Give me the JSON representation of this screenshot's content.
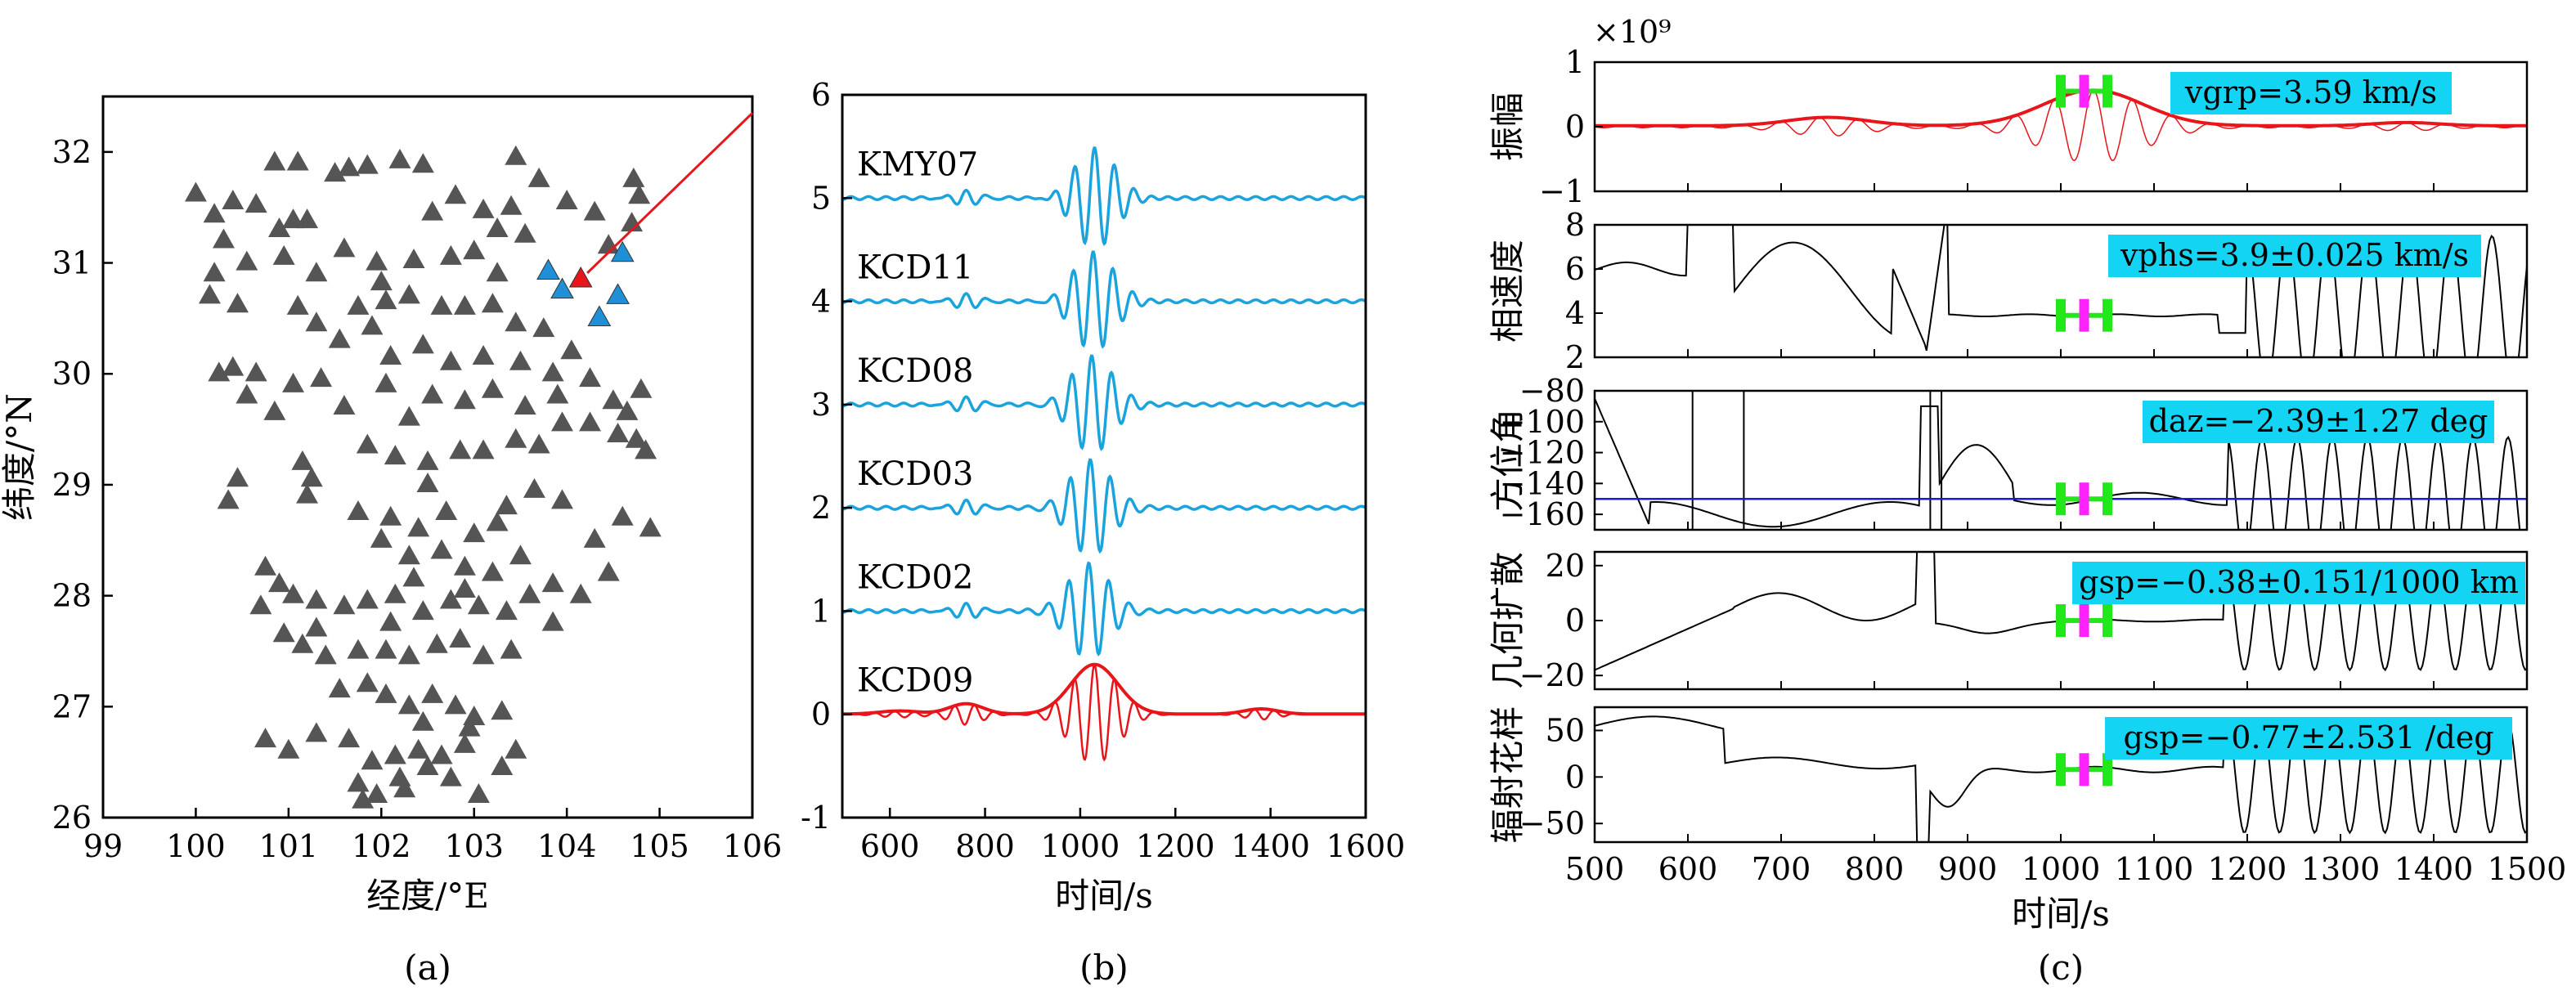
{
  "colors": {
    "station_gray": "#555555",
    "station_blue": "#1f8fd6",
    "event_red": "#e8151b",
    "trace_blue": "#1aa3dc",
    "trace_red": "#e8151b",
    "badge_bg": "#14d4f4",
    "win_green": "#22e81b",
    "win_magenta": "#ff22ff",
    "ref_line_blue": "#1a1ad6",
    "black": "#000000"
  },
  "chart_data": [
    {
      "id": "a",
      "type": "scatter",
      "panel_label": "(a)",
      "xlabel": "经度/°E",
      "ylabel": "纬度/°N",
      "xlim": [
        99,
        106
      ],
      "ylim": [
        26,
        32.5
      ],
      "xticks": [
        "99",
        "100",
        "101",
        "102",
        "103",
        "104",
        "105",
        "106"
      ],
      "yticks": [
        "26",
        "27",
        "28",
        "29",
        "30",
        "31",
        "32"
      ],
      "series": [
        {
          "marker": "triangle",
          "color": "gray",
          "points": [
            [
              100.0,
              31.62
            ],
            [
              100.2,
              31.43
            ],
            [
              100.4,
              31.55
            ],
            [
              100.65,
              31.52
            ],
            [
              100.85,
              31.9
            ],
            [
              101.1,
              31.9
            ],
            [
              101.5,
              31.8
            ],
            [
              101.65,
              31.85
            ],
            [
              101.85,
              31.87
            ],
            [
              102.2,
              31.92
            ],
            [
              102.45,
              31.88
            ],
            [
              103.45,
              31.95
            ],
            [
              103.7,
              31.75
            ],
            [
              102.8,
              31.6
            ],
            [
              103.1,
              31.47
            ],
            [
              103.4,
              31.5
            ],
            [
              103.25,
              31.3
            ],
            [
              103.55,
              31.25
            ],
            [
              104.0,
              31.55
            ],
            [
              104.3,
              31.45
            ],
            [
              104.72,
              31.75
            ],
            [
              104.78,
              31.6
            ],
            [
              104.7,
              31.35
            ],
            [
              104.45,
              31.15
            ],
            [
              100.3,
              31.2
            ],
            [
              100.55,
              31.0
            ],
            [
              100.9,
              31.3
            ],
            [
              101.2,
              31.38
            ],
            [
              101.6,
              31.12
            ],
            [
              101.95,
              31.0
            ],
            [
              102.35,
              31.02
            ],
            [
              102.75,
              31.05
            ],
            [
              103.0,
              31.1
            ],
            [
              103.25,
              30.9
            ],
            [
              100.2,
              30.9
            ],
            [
              100.15,
              30.7
            ],
            [
              100.45,
              30.62
            ],
            [
              100.95,
              31.05
            ],
            [
              101.3,
              30.9
            ],
            [
              101.75,
              30.6
            ],
            [
              102.0,
              30.82
            ],
            [
              102.3,
              30.7
            ],
            [
              102.65,
              30.6
            ],
            [
              102.9,
              30.6
            ],
            [
              103.2,
              30.62
            ],
            [
              103.45,
              30.45
            ],
            [
              100.25,
              30.0
            ],
            [
              100.4,
              30.05
            ],
            [
              101.1,
              30.6
            ],
            [
              101.3,
              30.45
            ],
            [
              101.55,
              30.3
            ],
            [
              101.9,
              30.42
            ],
            [
              102.1,
              30.15
            ],
            [
              102.45,
              30.25
            ],
            [
              102.75,
              30.1
            ],
            [
              103.1,
              30.15
            ],
            [
              103.5,
              30.1
            ],
            [
              103.75,
              30.4
            ],
            [
              100.55,
              29.8
            ],
            [
              100.85,
              29.65
            ],
            [
              101.05,
              29.9
            ],
            [
              101.35,
              29.95
            ],
            [
              101.6,
              29.7
            ],
            [
              102.05,
              29.9
            ],
            [
              102.3,
              29.6
            ],
            [
              102.55,
              29.8
            ],
            [
              102.9,
              29.75
            ],
            [
              103.2,
              29.85
            ],
            [
              103.55,
              29.7
            ],
            [
              103.85,
              30.0
            ],
            [
              104.05,
              30.2
            ],
            [
              104.25,
              29.95
            ],
            [
              104.5,
              29.75
            ],
            [
              104.8,
              29.85
            ],
            [
              104.65,
              29.65
            ],
            [
              100.45,
              29.05
            ],
            [
              100.35,
              28.85
            ],
            [
              101.15,
              29.2
            ],
            [
              101.25,
              29.05
            ],
            [
              101.85,
              29.35
            ],
            [
              102.15,
              29.25
            ],
            [
              102.5,
              29.0
            ],
            [
              102.85,
              29.3
            ],
            [
              103.1,
              29.3
            ],
            [
              103.45,
              29.4
            ],
            [
              103.7,
              29.35
            ],
            [
              103.95,
              29.55
            ],
            [
              104.25,
              29.55
            ],
            [
              104.55,
              29.45
            ],
            [
              104.75,
              29.4
            ],
            [
              104.85,
              29.3
            ],
            [
              103.9,
              29.8
            ],
            [
              101.2,
              28.9
            ],
            [
              101.75,
              28.75
            ],
            [
              102.1,
              28.7
            ],
            [
              102.4,
              28.6
            ],
            [
              102.7,
              28.75
            ],
            [
              103.0,
              28.55
            ],
            [
              103.35,
              28.8
            ],
            [
              103.65,
              28.95
            ],
            [
              103.95,
              28.85
            ],
            [
              104.3,
              28.5
            ],
            [
              104.6,
              28.7
            ],
            [
              104.9,
              28.6
            ],
            [
              102.0,
              28.5
            ],
            [
              102.3,
              28.35
            ],
            [
              102.65,
              28.4
            ],
            [
              102.9,
              28.25
            ],
            [
              103.2,
              28.2
            ],
            [
              103.5,
              28.35
            ],
            [
              103.85,
              28.1
            ],
            [
              104.15,
              28.0
            ],
            [
              104.45,
              28.2
            ],
            [
              100.75,
              28.25
            ],
            [
              100.9,
              28.1
            ],
            [
              101.05,
              28.0
            ],
            [
              101.3,
              27.95
            ],
            [
              101.6,
              27.9
            ],
            [
              101.85,
              27.95
            ],
            [
              102.15,
              28.0
            ],
            [
              102.45,
              27.85
            ],
            [
              102.75,
              27.95
            ],
            [
              103.05,
              27.9
            ],
            [
              103.35,
              27.85
            ],
            [
              103.6,
              28.0
            ],
            [
              103.85,
              27.75
            ],
            [
              100.7,
              27.9
            ],
            [
              100.95,
              27.65
            ],
            [
              101.15,
              27.55
            ],
            [
              101.4,
              27.45
            ],
            [
              101.75,
              27.5
            ],
            [
              102.05,
              27.5
            ],
            [
              102.3,
              27.45
            ],
            [
              102.6,
              27.55
            ],
            [
              102.85,
              27.6
            ],
            [
              103.1,
              27.45
            ],
            [
              103.4,
              27.5
            ],
            [
              101.85,
              27.2
            ],
            [
              102.05,
              27.1
            ],
            [
              102.3,
              27.0
            ],
            [
              102.55,
              27.1
            ],
            [
              102.8,
              27.0
            ],
            [
              103.0,
              26.9
            ],
            [
              103.3,
              26.95
            ],
            [
              100.75,
              26.7
            ],
            [
              101.0,
              26.6
            ],
            [
              101.3,
              26.75
            ],
            [
              101.65,
              26.7
            ],
            [
              101.9,
              26.5
            ],
            [
              102.15,
              26.55
            ],
            [
              102.4,
              26.6
            ],
            [
              102.65,
              26.55
            ],
            [
              102.9,
              26.65
            ],
            [
              103.45,
              26.6
            ],
            [
              101.75,
              26.3
            ],
            [
              101.95,
              26.2
            ],
            [
              102.2,
              26.35
            ],
            [
              102.5,
              26.45
            ],
            [
              102.75,
              26.35
            ],
            [
              103.05,
              26.2
            ],
            [
              103.3,
              26.45
            ],
            [
              101.8,
              26.15
            ],
            [
              102.25,
              26.25
            ],
            [
              102.95,
              26.8
            ],
            [
              102.45,
              26.85
            ],
            [
              102.1,
              27.75
            ],
            [
              102.35,
              28.15
            ],
            [
              101.55,
              27.15
            ],
            [
              101.3,
              27.7
            ],
            [
              102.9,
              28.05
            ],
            [
              103.25,
              28.65
            ],
            [
              102.5,
              29.2
            ],
            [
              102.05,
              30.65
            ],
            [
              101.05,
              31.38
            ],
            [
              100.65,
              30.0
            ],
            [
              102.55,
              31.45
            ]
          ]
        },
        {
          "marker": "triangle",
          "color": "blue",
          "points": [
            [
              103.8,
              30.92
            ],
            [
              103.95,
              30.75
            ],
            [
              104.35,
              30.5
            ],
            [
              104.6,
              31.08
            ],
            [
              104.55,
              30.7
            ]
          ]
        },
        {
          "marker": "triangle",
          "color": "red",
          "points": [
            [
              104.15,
              30.85
            ]
          ]
        }
      ],
      "annotation": {
        "type": "arrow",
        "from": [
          106,
          32.35
        ],
        "to": [
          104.15,
          30.85
        ]
      }
    },
    {
      "id": "b",
      "type": "line",
      "panel_label": "(b)",
      "xlabel": "时间/s",
      "xlim": [
        500,
        1600
      ],
      "ylim": [
        -1,
        6
      ],
      "xticks": [
        "600",
        "800",
        "1000",
        "1200",
        "1400",
        "1600"
      ],
      "yticks": [
        "-1",
        "0",
        "1",
        "2",
        "3",
        "4",
        "5",
        "6"
      ],
      "series": [
        {
          "name": "KMY07",
          "offset": 5,
          "color": "blue"
        },
        {
          "name": "KCD11",
          "offset": 4,
          "color": "blue"
        },
        {
          "name": "KCD08",
          "offset": 3,
          "color": "blue"
        },
        {
          "name": "KCD03",
          "offset": 2,
          "color": "blue"
        },
        {
          "name": "KCD02",
          "offset": 1,
          "color": "blue"
        },
        {
          "name": "KCD09",
          "offset": 0,
          "color": "red",
          "envelope": true
        }
      ]
    },
    {
      "id": "c",
      "type": "line",
      "panel_label": "(c)",
      "xlabel": "时间/s",
      "xlim": [
        500,
        1500
      ],
      "xticks": [
        "500",
        "600",
        "700",
        "800",
        "900",
        "1000",
        "1100",
        "1200",
        "1300",
        "1400",
        "1500"
      ],
      "exponent_label": "×10⁹",
      "window": {
        "left": 1000,
        "center": 1025,
        "right": 1050
      },
      "subplots": [
        {
          "ylabel": "振幅",
          "ylim": [
            -1,
            1
          ],
          "yticks": [
            "−1",
            "0",
            "1"
          ],
          "badge": "vgrp=3.59 km/s"
        },
        {
          "ylabel": "相速度",
          "ylim": [
            2,
            8
          ],
          "yticks": [
            "2",
            "4",
            "6",
            "8"
          ],
          "badge": "vphs=3.9±0.025 km/s"
        },
        {
          "ylabel": "方位角",
          "ylim": [
            -170,
            -80
          ],
          "yticks": [
            "−160",
            "−140",
            "−120",
            "−100",
            "−80"
          ],
          "badge": "daz=−2.39±1.27 deg",
          "reference_line": -150
        },
        {
          "ylabel": "几何扩散",
          "ylim": [
            -25,
            25
          ],
          "yticks": [
            "−20",
            "0",
            "20"
          ],
          "badge": "gsp=−0.38±0.151/1000 km"
        },
        {
          "ylabel": "辐射花样",
          "ylim": [
            -70,
            75
          ],
          "yticks": [
            "−50",
            "0",
            "50"
          ],
          "badge": "gsp=−0.77±2.531 /deg"
        }
      ]
    }
  ]
}
